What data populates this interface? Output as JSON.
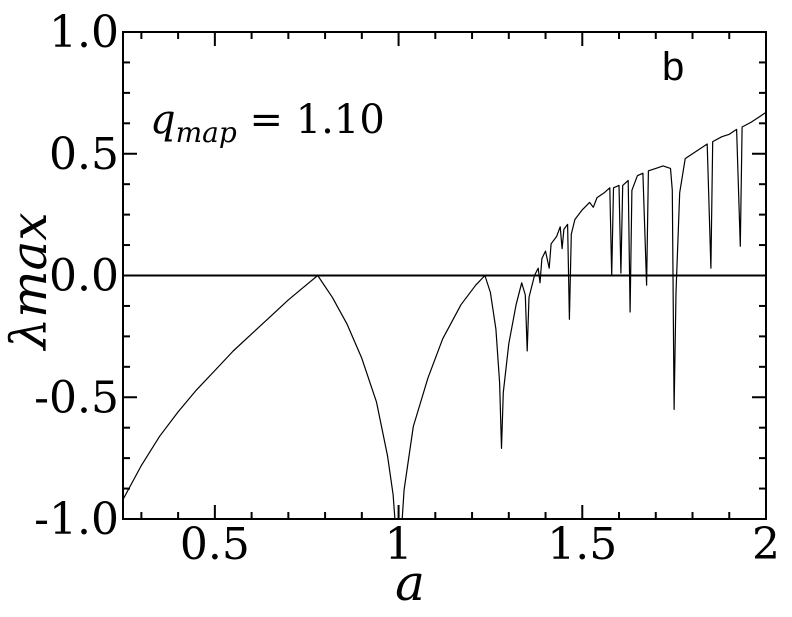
{
  "chart_data": {
    "type": "line",
    "panel_label": "b",
    "annotation": {
      "symbol": "q",
      "subscript": "map",
      "rest": " = 1.10"
    },
    "xlabel": "a",
    "ylabel": "λmax",
    "xlim": [
      0.25,
      2.0
    ],
    "ylim": [
      -1.0,
      1.0
    ],
    "xticks": [
      0.5,
      1,
      1.5,
      2
    ],
    "xtick_labels": [
      "0.5",
      "1",
      "1.5",
      "2"
    ],
    "yticks": [
      -1.0,
      -0.5,
      0.0,
      0.5,
      1.0
    ],
    "ytick_labels": [
      "-1.0",
      "-0.5",
      "0.0",
      "0.5",
      "1.0"
    ],
    "reference_line_y": 0.0,
    "series": [
      {
        "values": [
          [
            0.25,
            -0.92
          ],
          [
            0.3,
            -0.78
          ],
          [
            0.35,
            -0.66
          ],
          [
            0.4,
            -0.56
          ],
          [
            0.45,
            -0.47
          ],
          [
            0.5,
            -0.39
          ],
          [
            0.55,
            -0.31
          ],
          [
            0.6,
            -0.24
          ],
          [
            0.65,
            -0.17
          ],
          [
            0.7,
            -0.1
          ],
          [
            0.74,
            -0.05
          ],
          [
            0.78,
            0.0
          ],
          [
            0.82,
            -0.09
          ],
          [
            0.86,
            -0.2
          ],
          [
            0.9,
            -0.34
          ],
          [
            0.94,
            -0.52
          ],
          [
            0.97,
            -0.74
          ],
          [
            0.985,
            -0.9
          ],
          [
            0.99,
            -1.0
          ],
          [
            1.01,
            -1.0
          ],
          [
            1.015,
            -0.88
          ],
          [
            1.04,
            -0.62
          ],
          [
            1.08,
            -0.42
          ],
          [
            1.12,
            -0.26
          ],
          [
            1.17,
            -0.12
          ],
          [
            1.21,
            -0.04
          ],
          [
            1.235,
            0.0
          ],
          [
            1.25,
            -0.07
          ],
          [
            1.265,
            -0.22
          ],
          [
            1.275,
            -0.44
          ],
          [
            1.28,
            -0.71
          ],
          [
            1.285,
            -0.48
          ],
          [
            1.3,
            -0.28
          ],
          [
            1.32,
            -0.12
          ],
          [
            1.335,
            -0.03
          ],
          [
            1.345,
            -0.08
          ],
          [
            1.35,
            -0.31
          ],
          [
            1.355,
            -0.09
          ],
          [
            1.37,
            0.0
          ],
          [
            1.38,
            0.03
          ],
          [
            1.385,
            -0.03
          ],
          [
            1.39,
            0.07
          ],
          [
            1.4,
            0.1
          ],
          [
            1.41,
            0.03
          ],
          [
            1.415,
            0.13
          ],
          [
            1.43,
            0.16
          ],
          [
            1.44,
            0.2
          ],
          [
            1.445,
            0.11
          ],
          [
            1.45,
            0.19
          ],
          [
            1.46,
            0.21
          ],
          [
            1.465,
            -0.18
          ],
          [
            1.47,
            0.17
          ],
          [
            1.48,
            0.23
          ],
          [
            1.5,
            0.27
          ],
          [
            1.52,
            0.3
          ],
          [
            1.53,
            0.28
          ],
          [
            1.54,
            0.32
          ],
          [
            1.56,
            0.34
          ],
          [
            1.575,
            0.36
          ],
          [
            1.58,
            0.0
          ],
          [
            1.585,
            0.36
          ],
          [
            1.6,
            0.37
          ],
          [
            1.605,
            0.01
          ],
          [
            1.61,
            0.37
          ],
          [
            1.625,
            0.39
          ],
          [
            1.63,
            -0.15
          ],
          [
            1.635,
            0.35
          ],
          [
            1.65,
            0.41
          ],
          [
            1.665,
            0.42
          ],
          [
            1.675,
            -0.04
          ],
          [
            1.68,
            0.43
          ],
          [
            1.7,
            0.44
          ],
          [
            1.72,
            0.45
          ],
          [
            1.74,
            0.44
          ],
          [
            1.745,
            0.35
          ],
          [
            1.75,
            -0.55
          ],
          [
            1.755,
            -0.07
          ],
          [
            1.765,
            0.34
          ],
          [
            1.78,
            0.48
          ],
          [
            1.8,
            0.5
          ],
          [
            1.82,
            0.52
          ],
          [
            1.84,
            0.54
          ],
          [
            1.85,
            0.03
          ],
          [
            1.855,
            0.55
          ],
          [
            1.88,
            0.57
          ],
          [
            1.9,
            0.58
          ],
          [
            1.92,
            0.6
          ],
          [
            1.93,
            0.12
          ],
          [
            1.935,
            0.61
          ],
          [
            1.96,
            0.63
          ],
          [
            1.98,
            0.65
          ],
          [
            2.0,
            0.67
          ]
        ]
      }
    ]
  }
}
